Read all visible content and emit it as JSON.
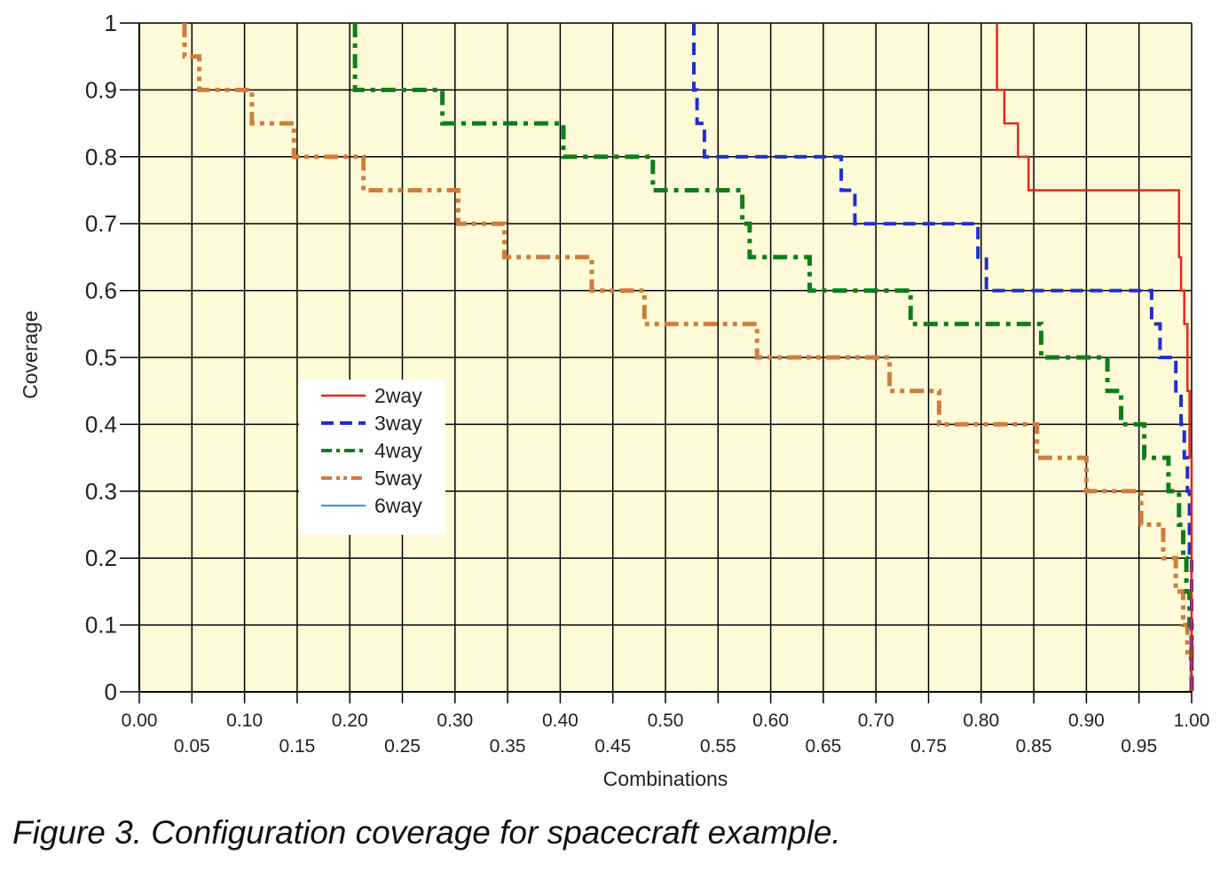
{
  "caption": "Figure 3. Configuration coverage for spacecraft example.",
  "chart_data": {
    "type": "line",
    "title": "",
    "xlabel": "Combinations",
    "ylabel": "Coverage",
    "xlim": [
      0,
      1
    ],
    "ylim": [
      0,
      1
    ],
    "x_ticks_top_row": [
      "0.00",
      "0.10",
      "0.20",
      "0.30",
      "0.40",
      "0.50",
      "0.60",
      "0.70",
      "0.80",
      "0.90",
      "1.00"
    ],
    "x_ticks_bottom_row": [
      "0.05",
      "0.15",
      "0.25",
      "0.35",
      "0.45",
      "0.55",
      "0.65",
      "0.75",
      "0.85",
      "0.95"
    ],
    "y_ticks": [
      "0",
      "0.1",
      "0.2",
      "0.3",
      "0.4",
      "0.5",
      "0.6",
      "0.7",
      "0.8",
      "0.9",
      "1"
    ],
    "grid": true,
    "plot_background": "#fffbd8",
    "legend_position": "left-middle",
    "series": [
      {
        "name": "2way",
        "color": "#e8251c",
        "style": "solid",
        "x": [
          0.815,
          0.815,
          0.822,
          0.822,
          0.835,
          0.835,
          0.845,
          0.845,
          0.852,
          0.852,
          0.988,
          0.988,
          0.99,
          0.99,
          0.993,
          0.993,
          0.996,
          0.996,
          0.998,
          0.998,
          1.0,
          1.0
        ],
        "y": [
          1.0,
          0.9,
          0.9,
          0.85,
          0.85,
          0.8,
          0.8,
          0.75,
          0.75,
          0.75,
          0.75,
          0.65,
          0.65,
          0.6,
          0.6,
          0.55,
          0.55,
          0.45,
          0.45,
          0.35,
          0.35,
          0.0
        ]
      },
      {
        "name": "3way",
        "color": "#1f2fd0",
        "style": "dash",
        "x": [
          0.527,
          0.527,
          0.53,
          0.53,
          0.537,
          0.537,
          0.667,
          0.667,
          0.68,
          0.68,
          0.797,
          0.797,
          0.805,
          0.805,
          0.825,
          0.825,
          0.962,
          0.962,
          0.97,
          0.97,
          0.985,
          0.985,
          0.99,
          0.99,
          0.993,
          0.993,
          0.996,
          0.996,
          0.998,
          0.998,
          1.0,
          1.0
        ],
        "y": [
          1.0,
          0.9,
          0.9,
          0.85,
          0.85,
          0.8,
          0.8,
          0.75,
          0.75,
          0.7,
          0.7,
          0.65,
          0.65,
          0.6,
          0.6,
          0.6,
          0.6,
          0.55,
          0.55,
          0.5,
          0.5,
          0.45,
          0.45,
          0.4,
          0.4,
          0.35,
          0.35,
          0.3,
          0.3,
          0.2,
          0.2,
          0.0
        ]
      },
      {
        "name": "4way",
        "color": "#0c7f1a",
        "style": "dash-dot",
        "x": [
          0.205,
          0.205,
          0.288,
          0.288,
          0.403,
          0.403,
          0.488,
          0.488,
          0.573,
          0.573,
          0.58,
          0.58,
          0.637,
          0.637,
          0.733,
          0.733,
          0.857,
          0.857,
          0.92,
          0.92,
          0.933,
          0.933,
          0.955,
          0.955,
          0.978,
          0.978,
          0.988,
          0.988,
          0.992,
          0.992,
          0.995,
          0.995,
          0.998,
          0.998,
          1.0,
          1.0
        ],
        "y": [
          1.0,
          0.9,
          0.9,
          0.85,
          0.85,
          0.8,
          0.8,
          0.75,
          0.75,
          0.7,
          0.7,
          0.65,
          0.65,
          0.6,
          0.6,
          0.55,
          0.55,
          0.5,
          0.5,
          0.45,
          0.45,
          0.4,
          0.4,
          0.35,
          0.35,
          0.3,
          0.3,
          0.25,
          0.25,
          0.2,
          0.2,
          0.15,
          0.15,
          0.1,
          0.1,
          0.0
        ]
      },
      {
        "name": "5way",
        "color": "#d17c3f",
        "style": "dash-dot-dot",
        "x": [
          0.043,
          0.043,
          0.057,
          0.057,
          0.107,
          0.107,
          0.147,
          0.147,
          0.213,
          0.213,
          0.303,
          0.303,
          0.347,
          0.347,
          0.43,
          0.43,
          0.48,
          0.48,
          0.587,
          0.587,
          0.713,
          0.713,
          0.76,
          0.76,
          0.853,
          0.853,
          0.9,
          0.9,
          0.952,
          0.952,
          0.973,
          0.973,
          0.985,
          0.985,
          0.992,
          0.992,
          0.996,
          0.996,
          1.0,
          1.0
        ],
        "y": [
          1.0,
          0.95,
          0.95,
          0.9,
          0.9,
          0.85,
          0.85,
          0.8,
          0.8,
          0.75,
          0.75,
          0.7,
          0.7,
          0.65,
          0.65,
          0.6,
          0.6,
          0.55,
          0.55,
          0.5,
          0.5,
          0.45,
          0.45,
          0.4,
          0.4,
          0.35,
          0.35,
          0.3,
          0.3,
          0.25,
          0.25,
          0.2,
          0.2,
          0.15,
          0.15,
          0.1,
          0.1,
          0.05,
          0.05,
          0.0
        ]
      },
      {
        "name": "6way",
        "color": "#3e8ee0",
        "style": "solid-thin",
        "x": [
          0.999,
          0.999
        ],
        "y": [
          0.05,
          0.0
        ]
      }
    ]
  }
}
